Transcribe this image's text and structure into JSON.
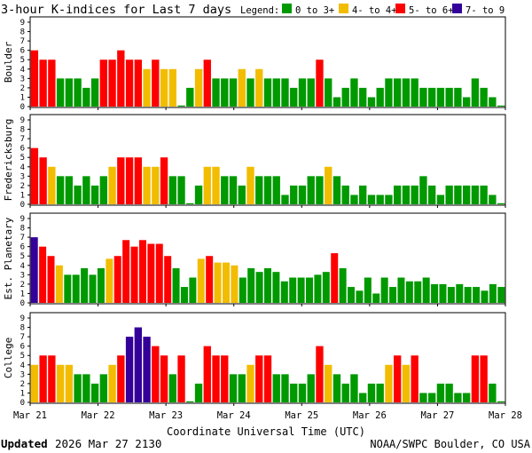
{
  "chart_data": {
    "type": "bar",
    "title": "3-hour K-indices for Last 7 days",
    "legend": {
      "title": "Legend:",
      "placement": "top-right",
      "items": [
        {
          "label": "0 to 3+",
          "color": "#009900"
        },
        {
          "label": "4- to 4+",
          "color": "#f2bc00"
        },
        {
          "label": "5- to 6+",
          "color": "#ff0000"
        },
        {
          "label": "7- to 9",
          "color": "#330099"
        }
      ]
    },
    "xlabel": "Coordinate Universal Time (UTC)",
    "x_ticks": [
      "Mar 21",
      "Mar 22",
      "Mar 23",
      "Mar 24",
      "Mar 25",
      "Mar 26",
      "Mar 27",
      "Mar 28"
    ],
    "y_ticks": [
      "0",
      "1",
      "2",
      "3",
      "4",
      "5",
      "6",
      "7",
      "8",
      "9"
    ],
    "ylim": [
      0,
      9
    ],
    "panels": [
      {
        "name": "Boulder",
        "values": [
          6,
          5,
          5,
          3,
          3,
          3,
          2,
          3,
          5,
          5,
          6,
          5,
          5,
          4,
          5,
          4,
          4,
          0,
          2,
          4,
          5,
          3,
          3,
          3,
          4,
          3,
          4,
          3,
          3,
          3,
          2,
          3,
          3,
          5,
          3,
          1,
          2,
          3,
          2,
          1,
          2,
          3,
          3,
          3,
          3,
          2,
          2,
          2,
          2,
          2,
          1,
          3,
          2,
          1,
          0
        ]
      },
      {
        "name": "Fredericksburg",
        "values": [
          6,
          5,
          4,
          3,
          3,
          2,
          3,
          2,
          3,
          4,
          5,
          5,
          5,
          4,
          4,
          5,
          3,
          3,
          0,
          2,
          4,
          4,
          3,
          3,
          2,
          4,
          3,
          3,
          3,
          1,
          2,
          2,
          3,
          3,
          4,
          3,
          2,
          1,
          2,
          1,
          1,
          1,
          2,
          2,
          2,
          3,
          2,
          1,
          2,
          2,
          2,
          2,
          2,
          1,
          0
        ]
      },
      {
        "name": "Est. Planetary",
        "values": [
          7,
          6,
          5,
          4,
          3,
          3,
          3.7,
          3,
          3.7,
          4.7,
          5,
          6.7,
          6,
          6.7,
          6.3,
          6.3,
          5,
          3.7,
          1.7,
          2.7,
          4.7,
          5,
          4.3,
          4.3,
          4,
          2.7,
          3.7,
          3.3,
          3.7,
          3.3,
          2.3,
          2.7,
          2.7,
          2.7,
          3,
          3.3,
          5.3,
          3.7,
          1.7,
          1.3,
          2.7,
          1,
          2.7,
          1.7,
          2.7,
          2.3,
          2.3,
          2.7,
          2,
          2,
          1.7,
          2,
          1.7,
          1.7,
          1.3,
          2,
          1.7
        ]
      },
      {
        "name": "College",
        "values": [
          4,
          5,
          5,
          4,
          4,
          3,
          3,
          2,
          3,
          4,
          5,
          7,
          8,
          7,
          6,
          5,
          3,
          5,
          0,
          2,
          6,
          5,
          5,
          3,
          3,
          4,
          5,
          5,
          3,
          3,
          2,
          2,
          3,
          6,
          4,
          3,
          2,
          3,
          1,
          2,
          2,
          4,
          5,
          4,
          5,
          1,
          1,
          2,
          2,
          1,
          1,
          5,
          5,
          2,
          0
        ]
      }
    ]
  },
  "footer": {
    "updated_label": "Updated",
    "updated_value": "2026 Mar 27 2130",
    "source": "NOAA/SWPC Boulder, CO USA"
  }
}
